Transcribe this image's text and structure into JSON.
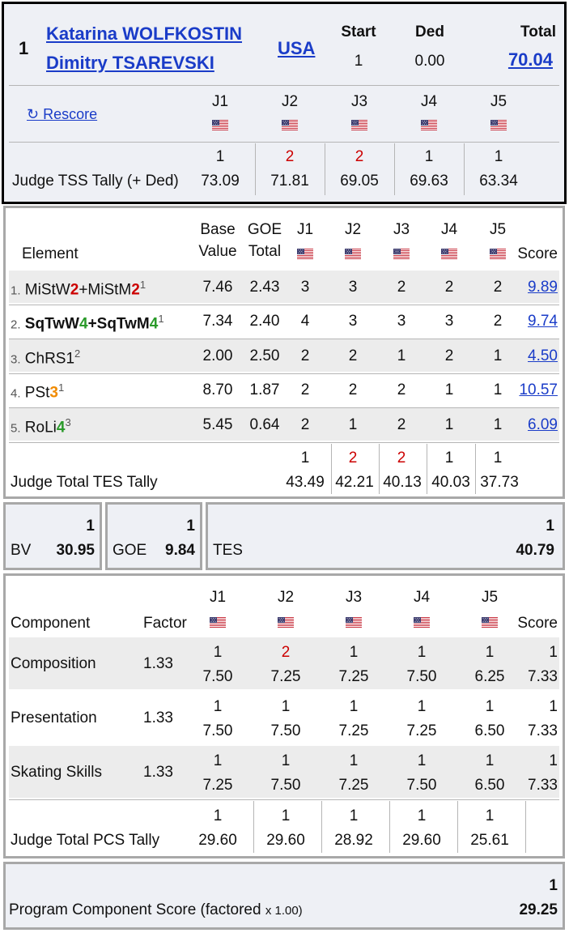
{
  "header": {
    "rank": "1",
    "skater1": "Katarina WOLFKOSTIN",
    "skater2": "Dimitry TSAREVSKI",
    "nation": "USA",
    "start_label": "Start",
    "start_value": "1",
    "ded_label": "Ded",
    "ded_value": "0.00",
    "total_label": "Total",
    "total_value": "70.04",
    "rescore_label": "↻ Rescore",
    "judges": [
      "J1",
      "J2",
      "J3",
      "J4",
      "J5"
    ],
    "tss_label": "Judge TSS Tally (+ Ded)",
    "tss_ranks": [
      "1",
      "2",
      "2",
      "1",
      "1"
    ],
    "tss_values": [
      "73.09",
      "71.81",
      "69.05",
      "69.63",
      "63.34"
    ]
  },
  "flag_icon": "us-flag-icon",
  "colors": {
    "link": "#1a3cc8",
    "red_rank": "#cc0000",
    "level_green": "#2a9a2a",
    "level_orange": "#f08a00",
    "level_red": "#cc0000"
  },
  "elements": {
    "col_element": "Element",
    "col_base1": "Base",
    "col_base2": "Value",
    "col_goe1": "GOE",
    "col_goe2": "Total",
    "col_score": "Score",
    "judges": [
      "J1",
      "J2",
      "J3",
      "J4",
      "J5"
    ],
    "rows": [
      {
        "num": "1.",
        "base": "7.46",
        "goe": "2.43",
        "marks": [
          "3",
          "3",
          "2",
          "2",
          "2"
        ],
        "score": "9.89"
      },
      {
        "num": "2.",
        "base": "7.34",
        "goe": "2.40",
        "marks": [
          "4",
          "3",
          "3",
          "3",
          "2"
        ],
        "score": "9.74"
      },
      {
        "num": "3.",
        "base": "2.00",
        "goe": "2.50",
        "marks": [
          "2",
          "2",
          "1",
          "2",
          "1"
        ],
        "score": "4.50"
      },
      {
        "num": "4.",
        "base": "8.70",
        "goe": "1.87",
        "marks": [
          "2",
          "2",
          "2",
          "1",
          "1"
        ],
        "score": "10.57"
      },
      {
        "num": "5.",
        "base": "5.45",
        "goe": "0.64",
        "marks": [
          "2",
          "1",
          "2",
          "1",
          "1"
        ],
        "score": "6.09"
      }
    ],
    "el1": {
      "a": "MiStW",
      "al": "2",
      "mid": "+MiStM",
      "bl": "2",
      "sup": "1"
    },
    "el2": {
      "a": "SqTwW",
      "al": "4",
      "mid": "+SqTwM",
      "bl": "4",
      "sup": "1"
    },
    "el3": {
      "a": "ChRS1",
      "sup": "2"
    },
    "el4": {
      "a": "PSt",
      "al": "3",
      "sup": "1"
    },
    "el5": {
      "a": "RoLi",
      "al": "4",
      "sup": "3"
    },
    "tes_label": "Judge Total TES Tally",
    "tes_ranks": [
      "1",
      "2",
      "2",
      "1",
      "1"
    ],
    "tes_values": [
      "43.49",
      "42.21",
      "40.13",
      "40.03",
      "37.73"
    ]
  },
  "summary": {
    "bv_label": "BV",
    "bv_rank": "1",
    "bv_value": "30.95",
    "goe_label": "GOE",
    "goe_rank": "1",
    "goe_value": "9.84",
    "tes_label": "TES",
    "tes_rank": "1",
    "tes_value": "40.79"
  },
  "components": {
    "col_component": "Component",
    "col_factor": "Factor",
    "col_score": "Score",
    "judges": [
      "J1",
      "J2",
      "J3",
      "J4",
      "J5"
    ],
    "rows": [
      {
        "name": "Composition",
        "factor": "1.33",
        "ranks": [
          "1",
          "2",
          "1",
          "1",
          "1"
        ],
        "marks": [
          "7.50",
          "7.25",
          "7.25",
          "7.50",
          "6.25"
        ],
        "score_rank": "1",
        "score": "7.33"
      },
      {
        "name": "Presentation",
        "factor": "1.33",
        "ranks": [
          "1",
          "1",
          "1",
          "1",
          "1"
        ],
        "marks": [
          "7.50",
          "7.50",
          "7.25",
          "7.25",
          "6.50"
        ],
        "score_rank": "1",
        "score": "7.33"
      },
      {
        "name": "Skating Skills",
        "factor": "1.33",
        "ranks": [
          "1",
          "1",
          "1",
          "1",
          "1"
        ],
        "marks": [
          "7.25",
          "7.50",
          "7.25",
          "7.50",
          "6.50"
        ],
        "score_rank": "1",
        "score": "7.33"
      }
    ],
    "pcs_label": "Judge Total PCS Tally",
    "pcs_ranks": [
      "1",
      "1",
      "1",
      "1",
      "1"
    ],
    "pcs_values": [
      "29.60",
      "29.60",
      "28.92",
      "29.60",
      "25.61"
    ]
  },
  "pcs_total": {
    "label": "Program Component Score (factored ",
    "label_small": "x 1.00)",
    "rank": "1",
    "value": "29.25"
  }
}
